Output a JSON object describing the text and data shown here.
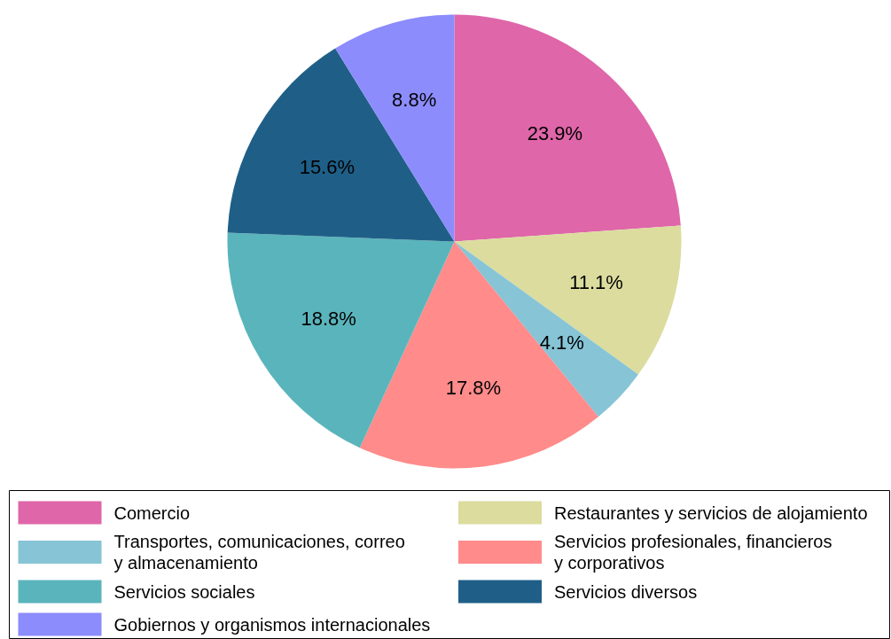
{
  "chart_data": {
    "type": "pie",
    "categories": [
      "Comercio",
      "Restaurantes y servicios de alojamiento",
      "Transportes, comunicaciones, correo\ny almacenamiento",
      "Servicios profesionales, financieros\ny corporativos",
      "Servicios sociales",
      "Servicios diversos",
      "Gobiernos y organismos internacionales"
    ],
    "values": [
      23.9,
      11.1,
      4.1,
      17.8,
      18.8,
      15.6,
      8.8
    ],
    "colors": [
      "#df66a9",
      "#dbdc9e",
      "#86c4d6",
      "#ff8b8b",
      "#5ab4bb",
      "#1f5f87",
      "#8c8cfc"
    ],
    "value_labels": [
      "23.9%",
      "11.1%",
      "4.1%",
      "17.8%",
      "18.8%",
      "15.6%",
      "8.8%"
    ],
    "legend": "bottom"
  }
}
